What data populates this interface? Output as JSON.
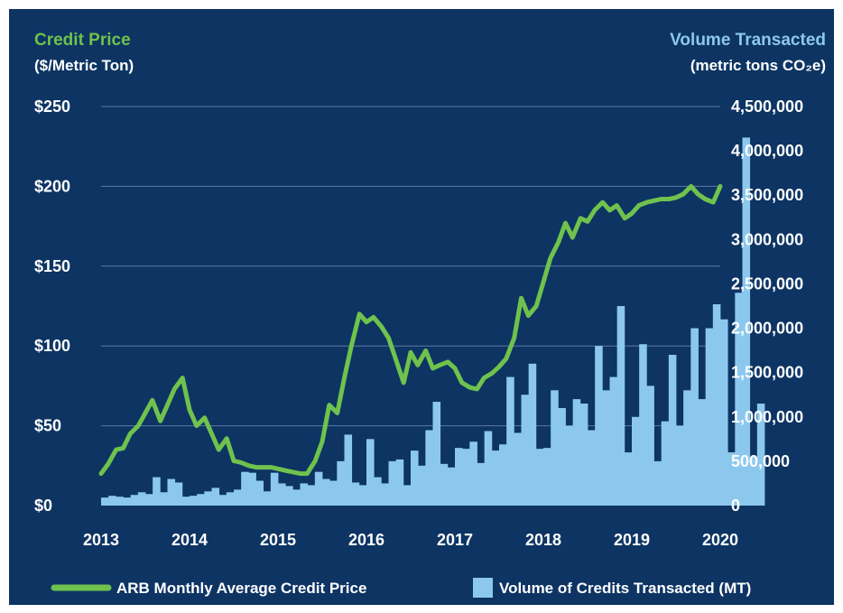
{
  "chart_data": {
    "type": "bar+line",
    "left_axis": {
      "title": "Credit Price",
      "subtitle": "($/Metric  Ton)",
      "range": [
        0,
        250
      ],
      "ticks": [
        "$0",
        "$50",
        "$100",
        "$150",
        "$200",
        "$250"
      ],
      "tick_values": [
        0,
        50,
        100,
        150,
        200,
        250
      ]
    },
    "right_axis": {
      "title": "Volume Transacted",
      "subtitle": "(metric tons CO₂e)",
      "range": [
        0,
        4500000
      ],
      "ticks": [
        "0",
        "500,000",
        "1,000,000",
        "1,500,000",
        "2,000,000",
        "2,500,000",
        "3,000,000",
        "3,500,000",
        "4,000,000",
        "4,500,000"
      ],
      "tick_values": [
        0,
        500000,
        1000000,
        1500000,
        2000000,
        2500000,
        3000000,
        3500000,
        4000000,
        4500000
      ]
    },
    "x_axis": {
      "ticks": [
        "2013",
        "2014",
        "2015",
        "2016",
        "2017",
        "2018",
        "2019",
        "2020"
      ],
      "tick_values": [
        2013,
        2014,
        2015,
        2016,
        2017,
        2018,
        2019,
        2020
      ],
      "range": [
        2013,
        2020
      ]
    },
    "grid": true,
    "legend_position": "bottom",
    "series": [
      {
        "name": "ARB Monthly Average Credit Price",
        "type": "line",
        "axis": "left",
        "color": "#6fc24d",
        "points": [
          [
            2013.0,
            20
          ],
          [
            2013.08,
            26
          ],
          [
            2013.17,
            35
          ],
          [
            2013.25,
            36
          ],
          [
            2013.33,
            45
          ],
          [
            2013.42,
            50
          ],
          [
            2013.5,
            58
          ],
          [
            2013.58,
            66
          ],
          [
            2013.67,
            53
          ],
          [
            2013.75,
            63
          ],
          [
            2013.83,
            73
          ],
          [
            2013.92,
            80
          ],
          [
            2014.0,
            60
          ],
          [
            2014.08,
            50
          ],
          [
            2014.17,
            55
          ],
          [
            2014.25,
            45
          ],
          [
            2014.33,
            35
          ],
          [
            2014.42,
            42
          ],
          [
            2014.5,
            28
          ],
          [
            2014.58,
            27
          ],
          [
            2014.67,
            25
          ],
          [
            2014.75,
            24
          ],
          [
            2014.83,
            24
          ],
          [
            2014.92,
            24
          ],
          [
            2015.0,
            23
          ],
          [
            2015.08,
            22
          ],
          [
            2015.17,
            21
          ],
          [
            2015.25,
            20
          ],
          [
            2015.33,
            20
          ],
          [
            2015.42,
            28
          ],
          [
            2015.5,
            40
          ],
          [
            2015.58,
            63
          ],
          [
            2015.67,
            58
          ],
          [
            2015.75,
            80
          ],
          [
            2015.83,
            100
          ],
          [
            2015.92,
            120
          ],
          [
            2016.0,
            115
          ],
          [
            2016.08,
            118
          ],
          [
            2016.17,
            112
          ],
          [
            2016.25,
            105
          ],
          [
            2016.33,
            92
          ],
          [
            2016.42,
            77
          ],
          [
            2016.5,
            96
          ],
          [
            2016.58,
            88
          ],
          [
            2016.67,
            97
          ],
          [
            2016.75,
            86
          ],
          [
            2016.83,
            88
          ],
          [
            2016.92,
            90
          ],
          [
            2017.0,
            86
          ],
          [
            2017.08,
            77
          ],
          [
            2017.17,
            74
          ],
          [
            2017.25,
            73
          ],
          [
            2017.33,
            80
          ],
          [
            2017.42,
            83
          ],
          [
            2017.5,
            87
          ],
          [
            2017.58,
            92
          ],
          [
            2017.67,
            105
          ],
          [
            2017.75,
            130
          ],
          [
            2017.83,
            119
          ],
          [
            2017.92,
            125
          ],
          [
            2018.0,
            140
          ],
          [
            2018.08,
            155
          ],
          [
            2018.17,
            165
          ],
          [
            2018.25,
            177
          ],
          [
            2018.33,
            168
          ],
          [
            2018.42,
            180
          ],
          [
            2018.5,
            178
          ],
          [
            2018.58,
            185
          ],
          [
            2018.67,
            190
          ],
          [
            2018.75,
            185
          ],
          [
            2018.83,
            188
          ],
          [
            2018.92,
            180
          ],
          [
            2019.0,
            183
          ],
          [
            2019.08,
            188
          ],
          [
            2019.17,
            190
          ],
          [
            2019.25,
            191
          ],
          [
            2019.33,
            192
          ],
          [
            2019.42,
            192
          ],
          [
            2019.5,
            193
          ],
          [
            2019.58,
            195
          ],
          [
            2019.67,
            200
          ],
          [
            2019.75,
            195
          ],
          [
            2019.83,
            192
          ],
          [
            2019.92,
            190
          ],
          [
            2020.0,
            200
          ]
        ]
      },
      {
        "name": "Volume of Credits Transacted (MT)",
        "type": "bar",
        "axis": "right",
        "color": "#8cc8ee",
        "start": 2013.0,
        "step": 0.0833333,
        "values": [
          90000,
          110000,
          100000,
          90000,
          120000,
          150000,
          130000,
          320000,
          150000,
          300000,
          260000,
          100000,
          110000,
          130000,
          160000,
          200000,
          120000,
          150000,
          180000,
          380000,
          370000,
          280000,
          160000,
          370000,
          250000,
          220000,
          180000,
          250000,
          230000,
          380000,
          300000,
          280000,
          500000,
          800000,
          260000,
          230000,
          750000,
          320000,
          250000,
          500000,
          520000,
          230000,
          620000,
          450000,
          850000,
          1170000,
          470000,
          430000,
          650000,
          640000,
          720000,
          480000,
          840000,
          620000,
          690000,
          1450000,
          820000,
          1250000,
          1600000,
          640000,
          650000,
          1300000,
          1100000,
          900000,
          1200000,
          1150000,
          850000,
          1800000,
          1300000,
          1450000,
          2250000,
          600000,
          1000000,
          1820000,
          1350000,
          500000,
          950000,
          1700000,
          900000,
          1300000,
          2000000,
          1200000,
          2000000,
          2270000,
          2100000,
          600000,
          2400000,
          4150000,
          550000,
          1150000
        ]
      }
    ]
  }
}
